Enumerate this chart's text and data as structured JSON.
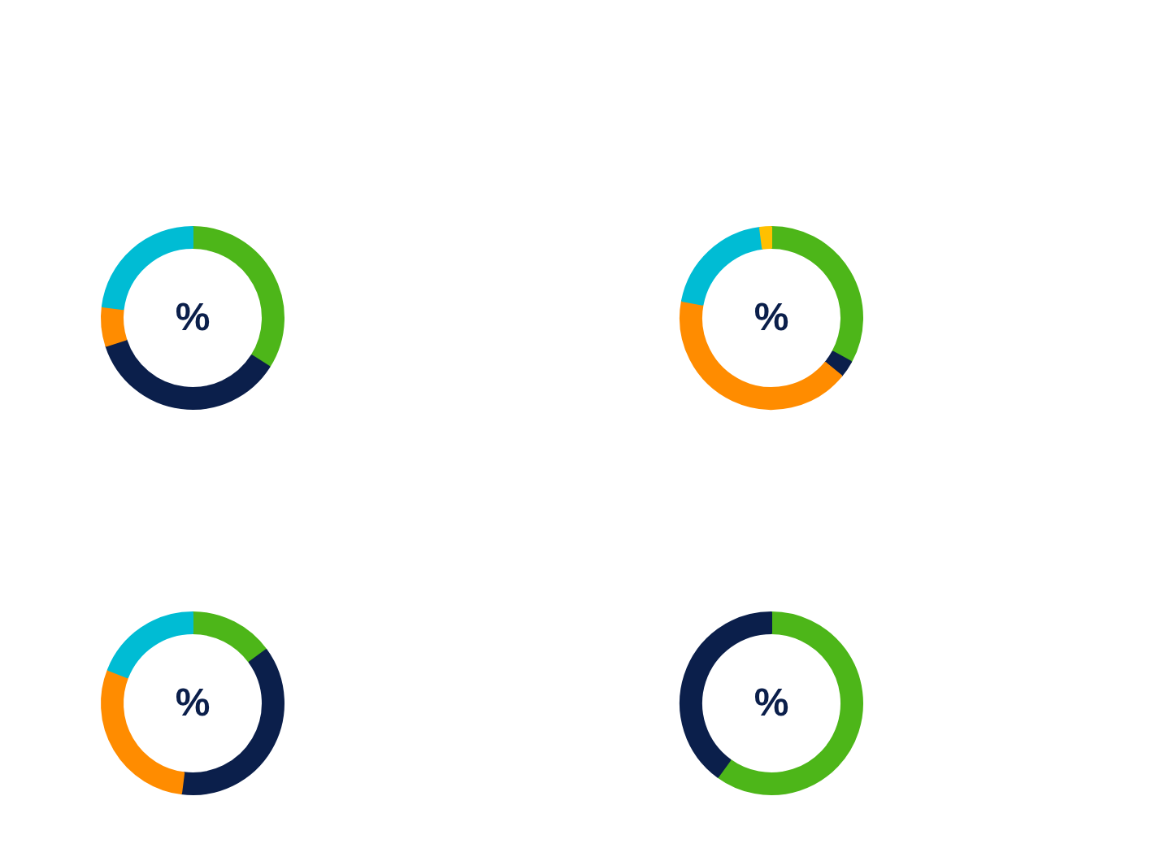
{
  "chart_data": [
    {
      "type": "donut",
      "categories": [
        null,
        null,
        null,
        null
      ],
      "values": [
        34,
        36,
        7,
        23
      ],
      "colors": [
        "#4db619",
        "#0b1f4b",
        "#ff8c00",
        "#00bcd4"
      ],
      "annotations": [
        "%"
      ]
    },
    {
      "type": "donut",
      "categories": [
        null,
        null,
        null,
        null,
        null
      ],
      "values": [
        33,
        3,
        42,
        20,
        2
      ],
      "colors": [
        "#4db619",
        "#0b1f4b",
        "#ff8c00",
        "#00bcd4",
        "#ffc000"
      ],
      "annotations": [
        "%"
      ]
    },
    {
      "type": "donut",
      "categories": [
        null,
        null,
        null,
        null
      ],
      "values": [
        15,
        37,
        29,
        19
      ],
      "colors": [
        "#4db619",
        "#0b1f4b",
        "#ff8c00",
        "#00bcd4"
      ],
      "annotations": [
        "%"
      ]
    },
    {
      "type": "donut",
      "categories": [
        null,
        null
      ],
      "values": [
        60,
        40
      ],
      "colors": [
        "#4db619",
        "#0b1f4b"
      ],
      "annotations": [
        "%"
      ]
    }
  ]
}
